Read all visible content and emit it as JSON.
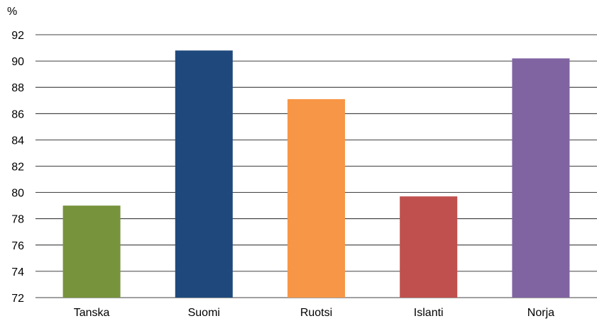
{
  "chart_data": {
    "type": "bar",
    "title": "",
    "xlabel": "",
    "ylabel": "%",
    "ylim": [
      72,
      92
    ],
    "yticks": [
      72,
      74,
      76,
      78,
      80,
      82,
      84,
      86,
      88,
      90,
      92
    ],
    "grid": true,
    "legend": "none",
    "categories": [
      "Tanska",
      "Suomi",
      "Ruotsi",
      "Islanti",
      "Norja"
    ],
    "values": [
      79.0,
      90.8,
      87.1,
      79.7,
      90.2
    ],
    "colors": [
      "#77933c",
      "#1f497d",
      "#f79646",
      "#c0504d",
      "#8064a2"
    ]
  }
}
